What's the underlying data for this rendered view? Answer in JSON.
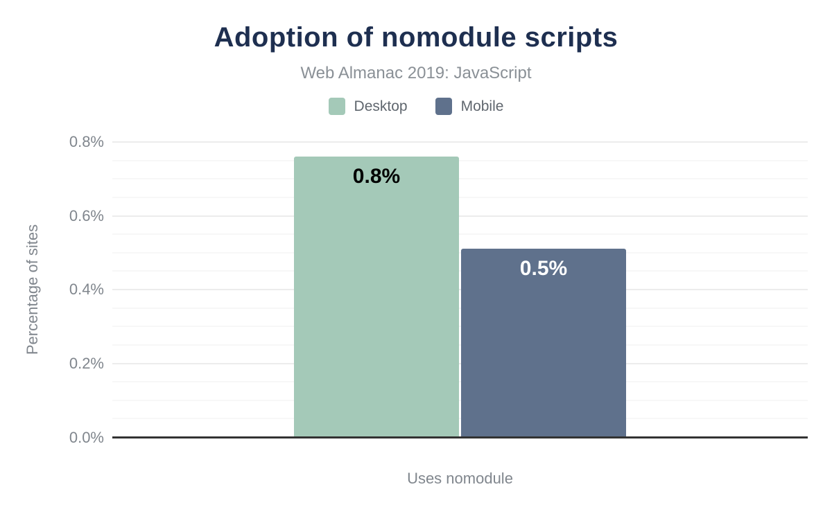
{
  "title": "Adoption of nomodule scripts",
  "subtitle": "Web Almanac 2019: JavaScript",
  "legend": [
    {
      "label": "Desktop",
      "color": "#a4c9b8"
    },
    {
      "label": "Mobile",
      "color": "#5f718c"
    }
  ],
  "colors": {
    "title_text": "#1e2f50",
    "muted_text": "#80868d",
    "legend_text": "#5f666e",
    "axis_line": "#323232",
    "grid_major": "#ececec",
    "grid_minor": "#f7f7f7"
  },
  "chart_data": {
    "type": "bar",
    "categories": [
      "Uses nomodule"
    ],
    "series": [
      {
        "name": "Desktop",
        "values": [
          0.76
        ],
        "color": "#a4c9b8",
        "data_label": "0.8%",
        "label_color": "#000000"
      },
      {
        "name": "Mobile",
        "values": [
          0.51
        ],
        "color": "#5f718c",
        "data_label": "0.5%",
        "label_color": "#ffffff"
      }
    ],
    "title": "Adoption of nomodule scripts",
    "subtitle": "Web Almanac 2019: JavaScript",
    "xlabel": "Uses nomodule",
    "ylabel": "Percentage of sites",
    "ylim": [
      0,
      0.8
    ],
    "yticks": [
      {
        "label": "0.0%",
        "value": 0.0
      },
      {
        "label": "0.2%",
        "value": 0.2
      },
      {
        "label": "0.4%",
        "value": 0.4
      },
      {
        "label": "0.6%",
        "value": 0.6
      },
      {
        "label": "0.8%",
        "value": 0.8
      }
    ],
    "minor_grid_step": 0.05,
    "grid": true,
    "legend_position": "top"
  }
}
